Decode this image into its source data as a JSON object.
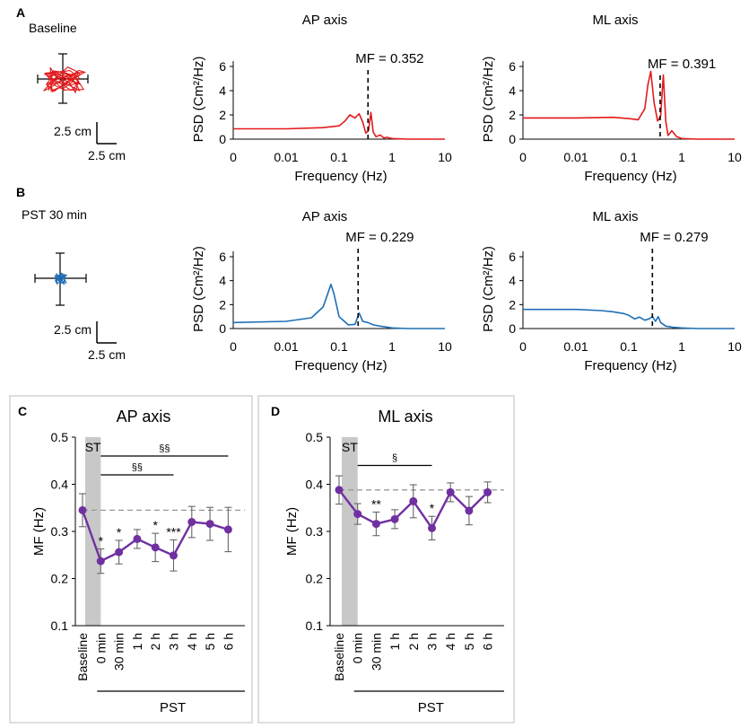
{
  "colors": {
    "baseline_trace": "#e31a1c",
    "pst_trace": "#1f6fb5",
    "mf_line": "#7030a0",
    "error_bar": "#666666",
    "shade": "#c8c8c8",
    "ref_line": "#999999"
  },
  "panels": {
    "A": {
      "letter": "A",
      "condition": "Baseline"
    },
    "B": {
      "letter": "B",
      "condition": "PST 30 min"
    },
    "C": {
      "letter": "C"
    },
    "D": {
      "letter": "D"
    }
  },
  "scalebar": {
    "vertical": "2.5 cm",
    "horizontal": "2.5 cm"
  },
  "chart_data": [
    {
      "id": "psd-A-AP",
      "type": "line",
      "title": "AP axis",
      "trace": "baseline",
      "xlabel": "Frequency (Hz)",
      "ylabel": "PSD (Cm²/Hz)",
      "xticks": [
        "0",
        "0.01",
        "0.1",
        "1",
        "10"
      ],
      "yticks": [
        "0",
        "2",
        "4",
        "6"
      ],
      "ylim": [
        0,
        6
      ],
      "mf_label": "MF = 0.352",
      "mf": 0.352,
      "x": [
        0.0001,
        0.01,
        0.05,
        0.1,
        0.13,
        0.16,
        0.2,
        0.24,
        0.28,
        0.32,
        0.36,
        0.4,
        0.44,
        0.5,
        0.6,
        0.7,
        0.8,
        1.0,
        2.0,
        10
      ],
      "y": [
        0.85,
        0.85,
        0.95,
        1.1,
        1.5,
        2.0,
        1.75,
        2.1,
        1.4,
        0.5,
        0.7,
        2.2,
        0.6,
        0.2,
        0.35,
        0.1,
        0.15,
        0.05,
        0.0,
        0.0
      ]
    },
    {
      "id": "psd-A-ML",
      "type": "line",
      "title": "ML axis",
      "trace": "baseline",
      "xlabel": "Frequency (Hz)",
      "ylabel": "PSD (Cm²/Hz)",
      "xticks": [
        "0",
        "0.01",
        "0.1",
        "1",
        "10"
      ],
      "yticks": [
        "0",
        "2",
        "4",
        "6"
      ],
      "ylim": [
        0,
        6
      ],
      "mf_label": "MF = 0.391",
      "mf": 0.391,
      "x": [
        0.0001,
        0.01,
        0.05,
        0.1,
        0.15,
        0.2,
        0.23,
        0.26,
        0.3,
        0.35,
        0.4,
        0.45,
        0.5,
        0.55,
        0.65,
        0.8,
        1.0,
        2.0,
        10
      ],
      "y": [
        1.75,
        1.75,
        1.8,
        1.7,
        1.6,
        2.5,
        4.5,
        5.6,
        3.0,
        1.5,
        1.9,
        5.3,
        1.5,
        0.3,
        0.7,
        0.2,
        0.05,
        0.0,
        0.0
      ]
    },
    {
      "id": "psd-B-AP",
      "type": "line",
      "title": "AP axis",
      "trace": "pst",
      "xlabel": "Frequency (Hz)",
      "ylabel": "PSD (Cm²/Hz)",
      "xticks": [
        "0",
        "0.01",
        "0.1",
        "1",
        "10"
      ],
      "yticks": [
        "0",
        "2",
        "4",
        "6"
      ],
      "ylim": [
        0,
        6
      ],
      "mf_label": "MF = 0.229",
      "mf": 0.229,
      "x": [
        0.0001,
        0.01,
        0.03,
        0.05,
        0.06,
        0.07,
        0.08,
        0.1,
        0.15,
        0.2,
        0.24,
        0.28,
        0.35,
        0.45,
        0.6,
        1.0,
        2.0,
        10
      ],
      "y": [
        0.5,
        0.6,
        0.9,
        1.8,
        2.8,
        3.7,
        2.9,
        1.0,
        0.3,
        0.35,
        1.3,
        0.6,
        0.5,
        0.3,
        0.2,
        0.05,
        0.0,
        0.0
      ]
    },
    {
      "id": "psd-B-ML",
      "type": "line",
      "title": "ML axis",
      "trace": "pst",
      "xlabel": "Frequency (Hz)",
      "ylabel": "PSD (Cm²/Hz)",
      "xticks": [
        "0",
        "0.01",
        "0.1",
        "1",
        "10"
      ],
      "yticks": [
        "0",
        "2",
        "4",
        "6"
      ],
      "ylim": [
        0,
        6
      ],
      "mf_label": "MF = 0.279",
      "mf": 0.279,
      "x": [
        0.0001,
        0.01,
        0.03,
        0.05,
        0.08,
        0.1,
        0.13,
        0.16,
        0.2,
        0.24,
        0.28,
        0.32,
        0.36,
        0.4,
        0.5,
        0.7,
        1.0,
        2.0,
        10
      ],
      "y": [
        1.6,
        1.6,
        1.5,
        1.4,
        1.25,
        1.1,
        0.8,
        0.95,
        0.7,
        0.8,
        1.0,
        0.6,
        1.0,
        0.5,
        0.2,
        0.1,
        0.05,
        0.0,
        0.0
      ]
    },
    {
      "id": "mf-C",
      "type": "line",
      "title": "AP axis",
      "ylabel": "MF (Hz)",
      "ylim": [
        0.1,
        0.5
      ],
      "yticks": [
        "0.1",
        "0.2",
        "0.3",
        "0.4",
        "0.5"
      ],
      "categories": [
        "Baseline",
        "0 min",
        "30 min",
        "1 h",
        "2 h",
        "3 h",
        "4 h",
        "5 h",
        "6 h"
      ],
      "values": [
        0.345,
        0.237,
        0.256,
        0.284,
        0.266,
        0.249,
        0.32,
        0.316,
        0.304
      ],
      "errors": [
        0.035,
        0.026,
        0.025,
        0.02,
        0.03,
        0.033,
        0.033,
        0.035,
        0.047
      ],
      "reference": 0.345,
      "shade_label": "ST",
      "group_label": "PST",
      "stars": [
        "",
        "*",
        "*",
        "",
        "*",
        "***",
        "",
        "",
        ""
      ],
      "brackets": [
        {
          "label": "§§",
          "from": 1,
          "to": 8,
          "y": 0.46
        },
        {
          "label": "§§",
          "from": 1,
          "to": 5,
          "y": 0.42
        }
      ]
    },
    {
      "id": "mf-D",
      "type": "line",
      "title": "ML axis",
      "ylabel": "MF (Hz)",
      "ylim": [
        0.1,
        0.5
      ],
      "yticks": [
        "0.1",
        "0.2",
        "0.3",
        "0.4",
        "0.5"
      ],
      "categories": [
        "Baseline",
        "0 min",
        "30 min",
        "1 h",
        "2 h",
        "3 h",
        "4 h",
        "5 h",
        "6 h"
      ],
      "values": [
        0.388,
        0.337,
        0.316,
        0.326,
        0.364,
        0.307,
        0.383,
        0.344,
        0.383
      ],
      "errors": [
        0.03,
        0.022,
        0.025,
        0.02,
        0.035,
        0.025,
        0.02,
        0.03,
        0.022
      ],
      "reference": 0.388,
      "shade_label": "ST",
      "group_label": "PST",
      "stars": [
        "",
        "",
        "**",
        "",
        "",
        "*",
        "",
        "",
        ""
      ],
      "brackets": [
        {
          "label": "§",
          "from": 1,
          "to": 5,
          "y": 0.44
        }
      ]
    }
  ]
}
